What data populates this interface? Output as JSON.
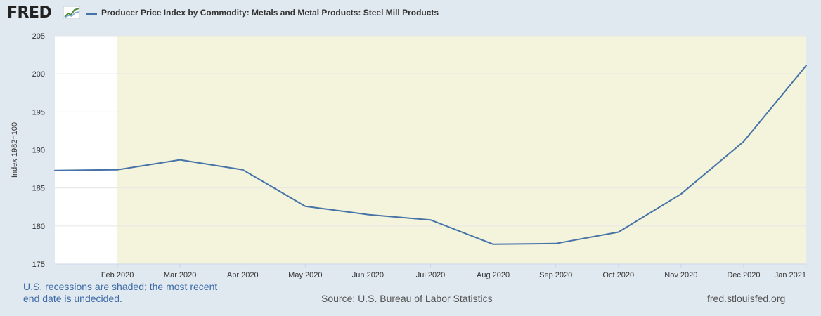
{
  "header": {
    "logo_text": "FRED",
    "legend_label": "Producer Price Index by Commodity: Metals and Metal Products: Steel Mill Products"
  },
  "colors": {
    "background": "#e1e9f0",
    "plot_background": "#ffffff",
    "recession_shade": "#f4f4dc",
    "series_line": "#4572a7",
    "note_text": "#3b6aa7"
  },
  "footer": {
    "note": "U.S. recessions are shaded; the most recent end date is undecided.",
    "source": "Source: U.S. Bureau of Labor Statistics",
    "url": "fred.stlouisfed.org"
  },
  "chart_data": {
    "type": "line",
    "title": "",
    "xlabel": "",
    "ylabel": "Index 1982=100",
    "x": [
      "2020-01",
      "2020-02",
      "2020-03",
      "2020-04",
      "2020-05",
      "2020-06",
      "2020-07",
      "2020-08",
      "2020-09",
      "2020-10",
      "2020-11",
      "2020-12",
      "2021-01"
    ],
    "x_tick_labels": [
      "Feb 2020",
      "Mar 2020",
      "Apr 2020",
      "May 2020",
      "Jun 2020",
      "Jul 2020",
      "Aug 2020",
      "Sep 2020",
      "Oct 2020",
      "Nov 2020",
      "Dec 2020",
      "Jan 2021"
    ],
    "series": [
      {
        "name": "Producer Price Index by Commodity: Metals and Metal Products: Steel Mill Products",
        "values": [
          187.3,
          187.4,
          188.7,
          187.4,
          182.6,
          181.5,
          180.8,
          177.6,
          177.7,
          179.2,
          184.2,
          191.1,
          201.1
        ]
      }
    ],
    "ylim": [
      175,
      205
    ],
    "y_ticks": [
      175,
      180,
      185,
      190,
      195,
      200,
      205
    ],
    "recession": {
      "start": "2020-02",
      "end": "2021-01",
      "label": "recession shading"
    },
    "grid": true,
    "legend": "top-left"
  }
}
